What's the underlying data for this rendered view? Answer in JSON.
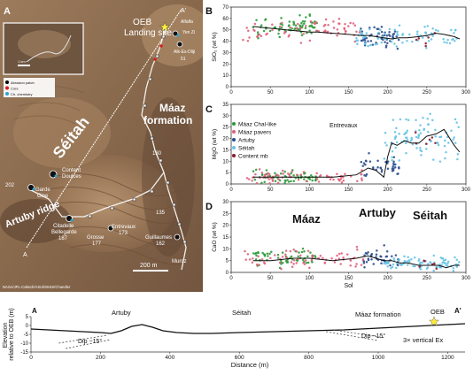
{
  "map": {
    "panel_letter": "A",
    "labels": {
      "oeb": "OEB",
      "landing_site": "Landing site",
      "maaz_line1": "Máaz",
      "maaz_line2": "formation",
      "seitah": "Séitah",
      "artuby": "Artuby ridge",
      "end_a_top": "A'",
      "end_a_bottom": "A",
      "scale_bar": "200 m",
      "credit": "NASA/JPL-Caltech/ASU/MSSS/Chandler",
      "inset_scale": "1 km"
    },
    "inset_legend": [
      "Abrasion patch",
      "Core",
      "Ch. chemistry"
    ],
    "sites": [
      {
        "name": "Alfalfa",
        "cls": "small"
      },
      {
        "name": "Yen Zi",
        "cls": "small"
      },
      {
        "name": "Alk-Es-Dliji",
        "cls": "small"
      },
      {
        "name": "51",
        "cls": "small"
      },
      {
        "name": "130",
        "cls": "small"
      },
      {
        "name": "Content",
        "cls": "site"
      },
      {
        "name": "Doulces",
        "cls": "site"
      },
      {
        "name": "202",
        "cls": "site"
      },
      {
        "name": "Garde",
        "cls": "site"
      },
      {
        "name": "Cine",
        "cls": "site"
      },
      {
        "name": "Citadelle",
        "cls": "site"
      },
      {
        "name": "Bellegarde",
        "cls": "site"
      },
      {
        "name": "187",
        "cls": "site"
      },
      {
        "name": "Grosse",
        "cls": "site"
      },
      {
        "name": "177",
        "cls": "site"
      },
      {
        "name": "Entrevaux",
        "cls": "site"
      },
      {
        "name": "173",
        "cls": "site"
      },
      {
        "name": "135",
        "cls": "site"
      },
      {
        "name": "Guillaumes",
        "cls": "site"
      },
      {
        "name": "162",
        "cls": "site"
      },
      {
        "name": "Muroz",
        "cls": "site"
      }
    ]
  },
  "legend": {
    "items": [
      {
        "label": "Máaz Chal-like",
        "color": "#2e9a3a"
      },
      {
        "label": "Máaz pavers",
        "color": "#e0607a"
      },
      {
        "label": "Artuby",
        "color": "#2a4d8f"
      },
      {
        "label": "Séitah",
        "color": "#66c3e4"
      },
      {
        "label": "Content mb",
        "color": "#8b1a2e"
      }
    ]
  },
  "panel_letters": {
    "b": "B",
    "c": "C",
    "d": "D"
  },
  "region_labels": {
    "maaz": "Máaz",
    "artuby": "Artuby",
    "seitah": "Séitah",
    "entrevaux": "Entrevaux"
  },
  "chart_data": [
    {
      "id": "B",
      "type": "scatter",
      "ylabel": "SiO₂ (wt %)",
      "xlabel": "",
      "xlim": [
        0,
        300
      ],
      "ylim": [
        0,
        70
      ],
      "xticks": [
        0,
        50,
        100,
        150,
        200,
        250,
        300
      ],
      "yticks": [
        0,
        10,
        20,
        30,
        40,
        50,
        60,
        70
      ],
      "line": {
        "x": [
          28,
          40,
          55,
          70,
          85,
          100,
          110,
          130,
          150,
          165,
          175,
          185,
          195,
          205,
          215,
          225,
          240,
          250,
          262,
          272,
          285,
          292
        ],
        "y": [
          53,
          52,
          51,
          50,
          49,
          48,
          48,
          47,
          46,
          45,
          45,
          44,
          43,
          42,
          43,
          43,
          44,
          45,
          47,
          46,
          44,
          42
        ]
      },
      "clusters": [
        {
          "series": "Máaz Chal-like",
          "color": "#2e9a3a",
          "xr": [
            28,
            110
          ],
          "ym": 53,
          "ys": 6,
          "n": 70
        },
        {
          "series": "Máaz pavers",
          "color": "#e0607a",
          "xr": [
            15,
            165
          ],
          "ym": 50,
          "ys": 7,
          "n": 70
        },
        {
          "series": "Artuby",
          "color": "#2a4d8f",
          "xr": [
            165,
            215
          ],
          "ym": 43,
          "ys": 6,
          "n": 50
        },
        {
          "series": "Séitah",
          "color": "#66c3e4",
          "xr": [
            160,
            292
          ],
          "ym": 44,
          "ys": 6,
          "n": 80
        },
        {
          "series": "Content mb",
          "color": "#8b1a2e",
          "xr": [
            235,
            265
          ],
          "ym": 42,
          "ys": 4,
          "n": 6
        }
      ]
    },
    {
      "id": "C",
      "type": "scatter",
      "ylabel": "MgO (wt %)",
      "xlabel": "",
      "xlim": [
        0,
        300
      ],
      "ylim": [
        0,
        35
      ],
      "xticks": [
        0,
        50,
        100,
        150,
        200,
        250,
        300
      ],
      "yticks": [
        0,
        5,
        10,
        15,
        20,
        25,
        30,
        35
      ],
      "line": {
        "x": [
          28,
          60,
          100,
          130,
          160,
          175,
          185,
          195,
          200,
          205,
          212,
          222,
          230,
          240,
          250,
          262,
          272,
          285,
          292
        ],
        "y": [
          3,
          3,
          3,
          3,
          4,
          7,
          6,
          3,
          12,
          18,
          17,
          19,
          18,
          18,
          21,
          22,
          24,
          17,
          14
        ]
      },
      "clusters": [
        {
          "series": "Máaz Chal-like",
          "color": "#2e9a3a",
          "xr": [
            28,
            110
          ],
          "ym": 3,
          "ys": 2,
          "n": 60
        },
        {
          "series": "Máaz pavers",
          "color": "#e0607a",
          "xr": [
            15,
            170
          ],
          "ym": 3,
          "ys": 2,
          "n": 70
        },
        {
          "series": "Artuby",
          "color": "#2a4d8f",
          "xr": [
            165,
            215
          ],
          "ym": 7,
          "ys": 4,
          "n": 40
        },
        {
          "series": "Séitah",
          "color": "#66c3e4",
          "xr": [
            195,
            292
          ],
          "ym": 20,
          "ys": 7,
          "n": 90
        },
        {
          "series": "Content mb",
          "color": "#8b1a2e",
          "xr": [
            235,
            265
          ],
          "ym": 20,
          "ys": 5,
          "n": 6
        }
      ]
    },
    {
      "id": "D",
      "type": "scatter",
      "ylabel": "CaO (wt %)",
      "xlabel": "Sol",
      "xlim": [
        0,
        300
      ],
      "ylim": [
        0,
        30
      ],
      "xticks": [
        0,
        50,
        100,
        150,
        200,
        250,
        300
      ],
      "yticks": [
        0,
        5,
        10,
        15,
        20,
        25,
        30
      ],
      "line": {
        "x": [
          28,
          50,
          80,
          100,
          130,
          160,
          175,
          185,
          195,
          205,
          215,
          225,
          240,
          255,
          265,
          275,
          285,
          292
        ],
        "y": [
          5,
          5,
          6,
          6,
          5,
          6,
          7,
          6,
          5,
          5,
          4,
          4,
          3,
          3,
          3,
          2,
          3,
          3
        ]
      },
      "clusters": [
        {
          "series": "Máaz Chal-like",
          "color": "#2e9a3a",
          "xr": [
            28,
            110
          ],
          "ym": 6,
          "ys": 3,
          "n": 60
        },
        {
          "series": "Máaz pavers",
          "color": "#e0607a",
          "xr": [
            15,
            170
          ],
          "ym": 6,
          "ys": 3,
          "n": 70
        },
        {
          "series": "Artuby",
          "color": "#2a4d8f",
          "xr": [
            165,
            215
          ],
          "ym": 6,
          "ys": 3,
          "n": 40
        },
        {
          "series": "Séitah",
          "color": "#66c3e4",
          "xr": [
            195,
            292
          ],
          "ym": 4,
          "ys": 2,
          "n": 80
        },
        {
          "series": "Content mb",
          "color": "#8b1a2e",
          "xr": [
            235,
            265
          ],
          "ym": 4,
          "ys": 2,
          "n": 6
        }
      ]
    }
  ],
  "profile": {
    "end_left": "A",
    "end_right": "A'",
    "labels": {
      "artuby": "Artuby",
      "seitah": "Séitah",
      "maaz": "Máaz formation",
      "oeb": "OEB",
      "dip_left": "Dip ~15°",
      "dip_right": "Dip ~15°",
      "vertical_ex": "3× vertical Ex"
    },
    "ylabel_line1": "Elevation",
    "ylabel_line2": "relative to OEB (m)",
    "xlabel": "Distance (m)",
    "xlim": [
      0,
      1250
    ],
    "ylim": [
      -15,
      5
    ],
    "xticks": [
      0,
      200,
      400,
      600,
      800,
      1000,
      1200
    ],
    "yticks": [
      5,
      0,
      -5,
      -10,
      -15
    ],
    "surface": {
      "x": [
        0,
        50,
        100,
        150,
        200,
        230,
        260,
        290,
        320,
        350,
        380,
        420,
        470,
        520,
        600,
        700,
        800,
        900,
        950,
        1000,
        1050,
        1100,
        1150,
        1200,
        1250
      ],
      "y": [
        -2,
        -2.5,
        -3,
        -3.5,
        -4,
        -4.5,
        -3,
        -0.5,
        0.5,
        -1,
        -3,
        -4,
        -4.5,
        -4.5,
        -4,
        -3.5,
        -3,
        -2.5,
        -2,
        -1.5,
        -1,
        -0.5,
        0,
        0.5,
        1
      ]
    }
  }
}
